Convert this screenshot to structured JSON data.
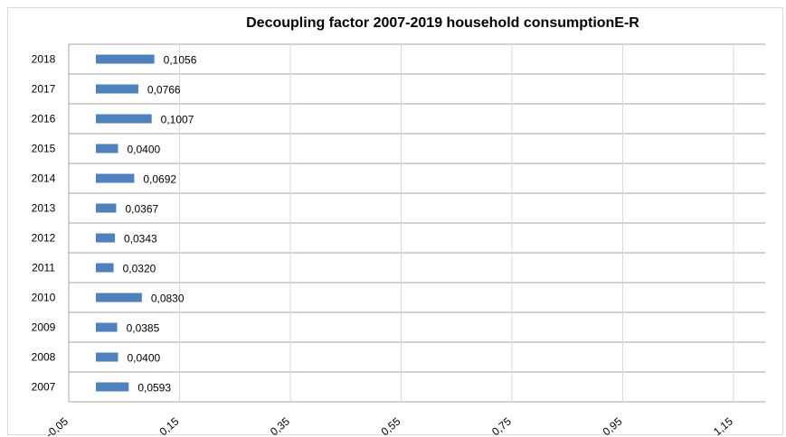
{
  "chart_data": {
    "type": "bar",
    "orientation": "horizontal",
    "title": "Decoupling factor 2007-2019 household consumptionE-R",
    "xlabel": "",
    "ylabel": "",
    "categories": [
      "2018",
      "2017",
      "2016",
      "2015",
      "2014",
      "2013",
      "2012",
      "2011",
      "2010",
      "2009",
      "2008",
      "2007"
    ],
    "values": [
      0.1056,
      0.0766,
      0.1007,
      0.04,
      0.0692,
      0.0367,
      0.0343,
      0.032,
      0.083,
      0.0385,
      0.04,
      0.0593
    ],
    "value_labels": [
      "0,1056",
      "0,0766",
      "0,1007",
      "0,0400",
      "0,0692",
      "0,0367",
      "0,0343",
      "0,0320",
      "0,0830",
      "0,0385",
      "0,0400",
      "0,0593"
    ],
    "x_ticks": [
      -0.05,
      0.15,
      0.35,
      0.55,
      0.75,
      0.95,
      1.15
    ],
    "x_tick_labels": [
      "-0,05",
      "0,15",
      "0,35",
      "0,55",
      "0,75",
      "0,95",
      "1,15"
    ],
    "xlim": [
      -0.05,
      1.2
    ],
    "bar_color": "#4f81bd",
    "grid": true,
    "legend": "none"
  }
}
